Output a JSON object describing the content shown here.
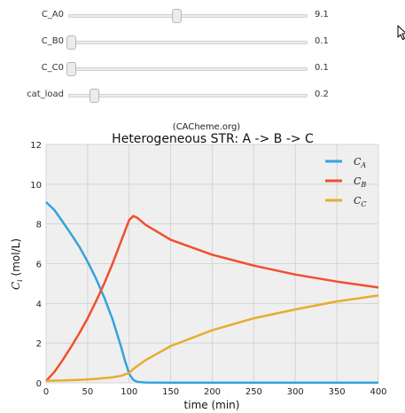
{
  "sliders": [
    {
      "label": "C_A0",
      "value": "9.1",
      "fraction": 0.455
    },
    {
      "label": "C_B0",
      "value": "0.1",
      "fraction": 0.01
    },
    {
      "label": "C_C0",
      "value": "0.1",
      "fraction": 0.01
    },
    {
      "label": "cat_load",
      "value": "0.2",
      "fraction": 0.11
    }
  ],
  "cursor_icon": "pointer-cursor-icon",
  "chart_data": {
    "type": "line",
    "supertitle": "(CACheme.org)",
    "title": "Heterogeneous STR: A -> B -> C",
    "xlabel": "time (min)",
    "ylabel_main": "C",
    "ylabel_sub": "i",
    "ylabel_tail": " (mol/L)",
    "xlim": [
      0,
      400
    ],
    "ylim": [
      0,
      12
    ],
    "xticks": [
      0,
      50,
      100,
      150,
      200,
      250,
      300,
      350,
      400
    ],
    "yticks": [
      0,
      2,
      4,
      6,
      8,
      10,
      12
    ],
    "grid": true,
    "legend_position": "top-right",
    "series": [
      {
        "name_main": "C",
        "name_sub": "A",
        "color": "#34a3dc",
        "x": [
          0,
          10,
          20,
          30,
          40,
          50,
          60,
          70,
          80,
          90,
          95,
          100,
          105,
          110,
          120,
          150,
          200,
          300,
          400
        ],
        "y": [
          9.1,
          8.7,
          8.1,
          7.5,
          6.85,
          6.1,
          5.25,
          4.3,
          3.2,
          1.85,
          1.1,
          0.45,
          0.15,
          0.05,
          0.02,
          0.01,
          0.01,
          0.01,
          0.01
        ]
      },
      {
        "name_main": "C",
        "name_sub": "B",
        "color": "#f24e2e",
        "x": [
          0,
          10,
          20,
          30,
          40,
          50,
          60,
          70,
          80,
          90,
          100,
          105,
          110,
          120,
          150,
          200,
          250,
          300,
          350,
          400
        ],
        "y": [
          0.1,
          0.55,
          1.15,
          1.8,
          2.5,
          3.25,
          4.1,
          5.0,
          6.0,
          7.1,
          8.2,
          8.4,
          8.3,
          7.95,
          7.2,
          6.45,
          5.9,
          5.45,
          5.1,
          4.8
        ]
      },
      {
        "name_main": "C",
        "name_sub": "C",
        "color": "#e8ac2f",
        "x": [
          0,
          20,
          40,
          60,
          80,
          90,
          100,
          105,
          110,
          120,
          150,
          200,
          250,
          300,
          350,
          400
        ],
        "y": [
          0.1,
          0.12,
          0.15,
          0.2,
          0.28,
          0.35,
          0.5,
          0.7,
          0.85,
          1.15,
          1.85,
          2.65,
          3.25,
          3.7,
          4.1,
          4.4
        ]
      }
    ]
  }
}
